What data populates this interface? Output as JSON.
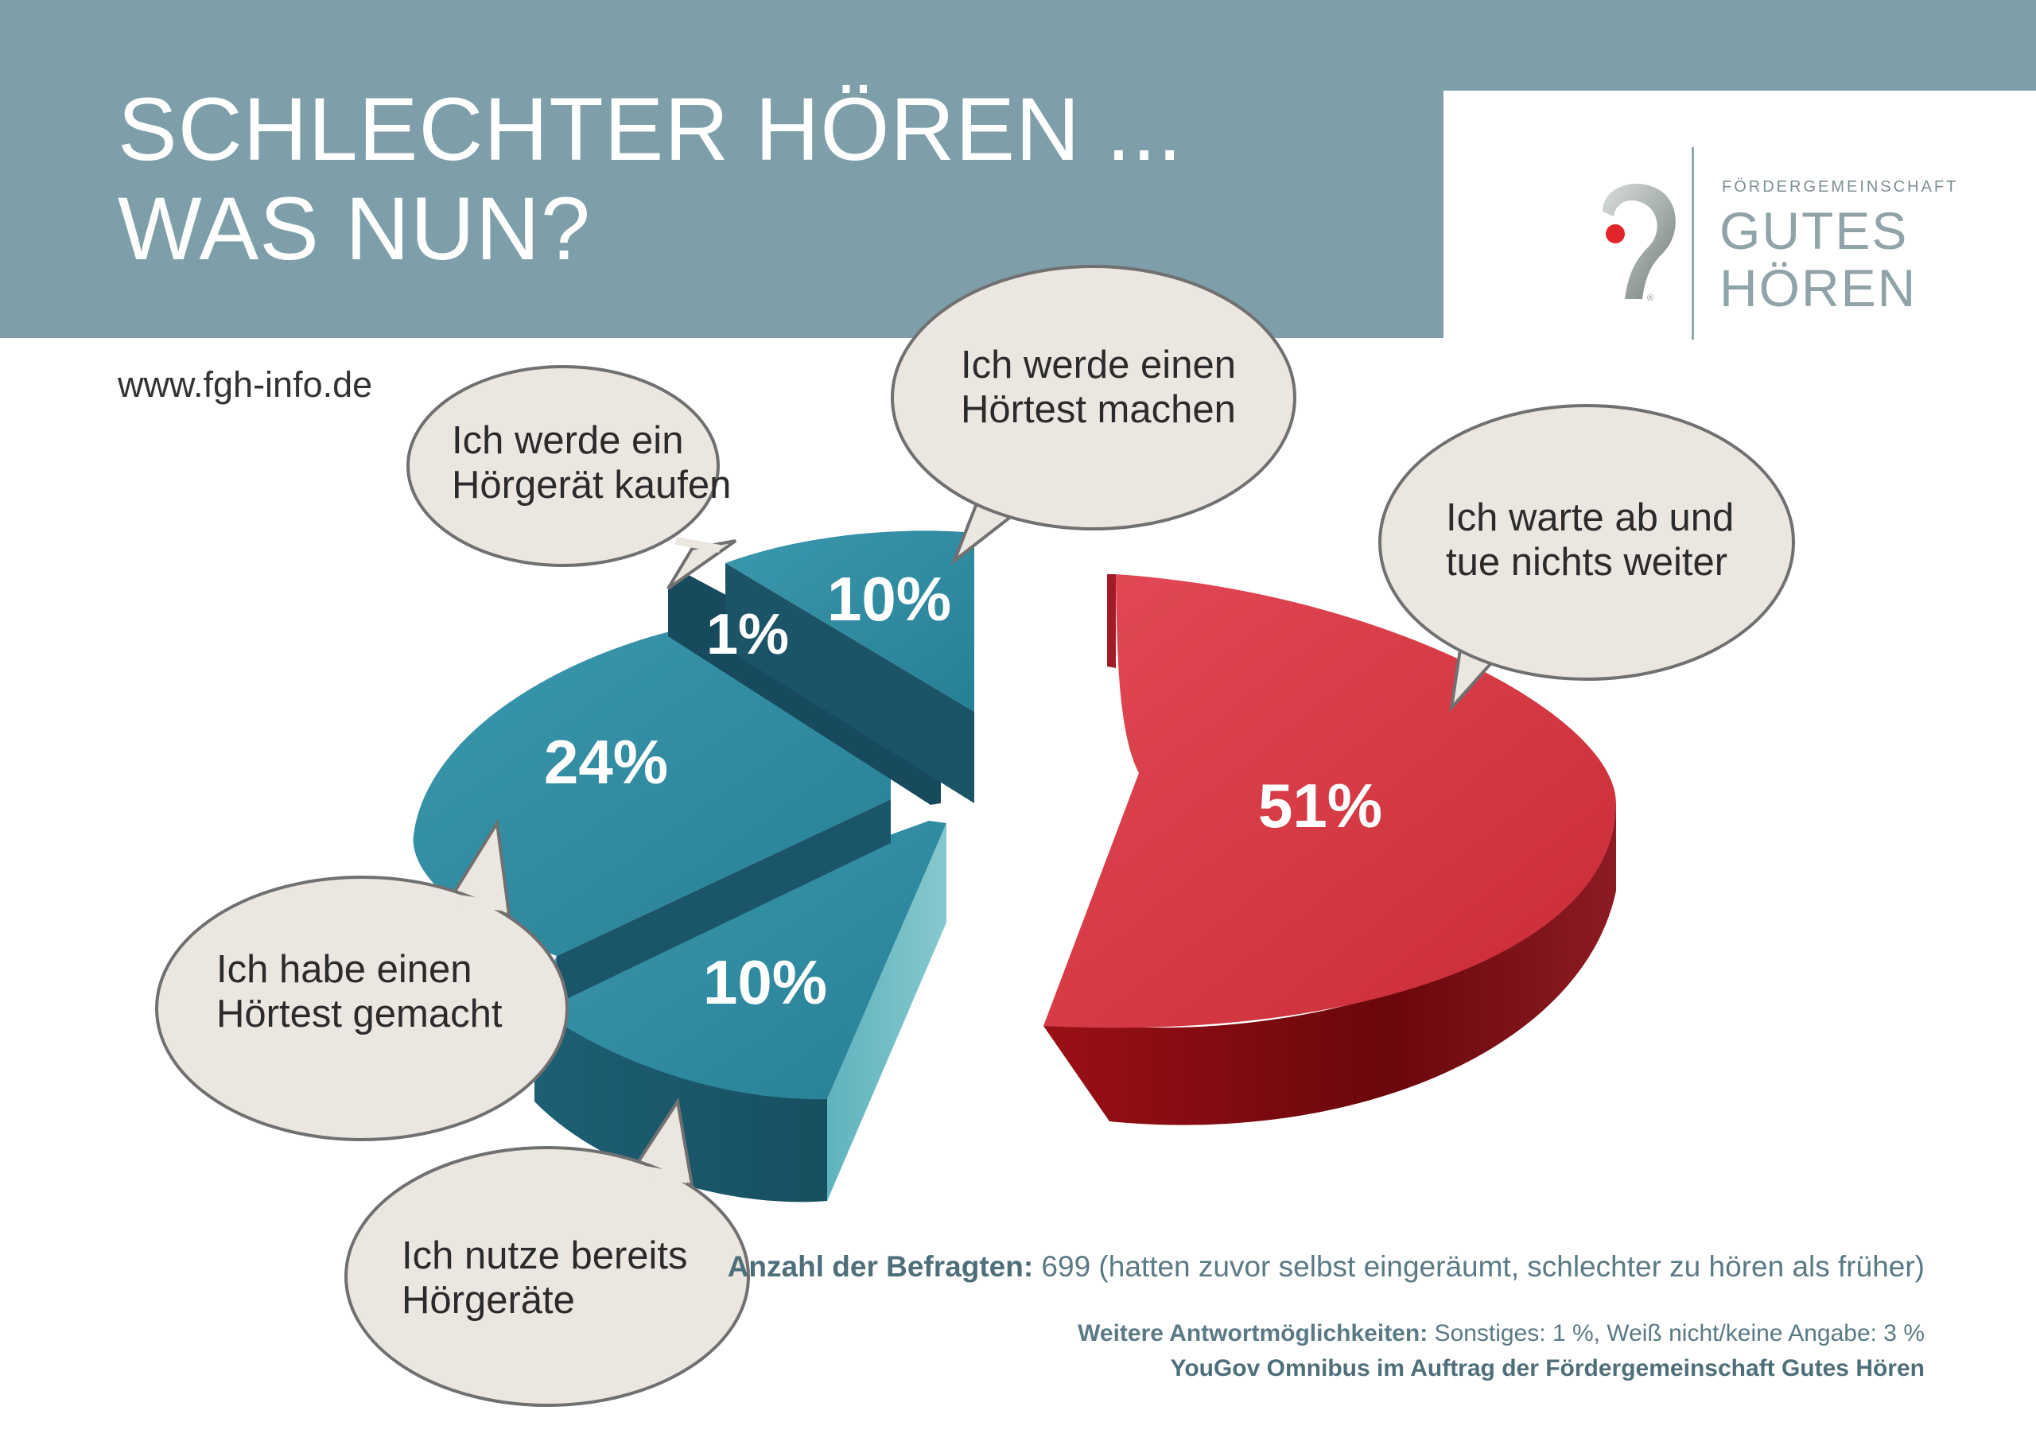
{
  "header": {
    "title_line1": "SCHLECHTER HÖREN ...",
    "title_line2": "WAS NUN?",
    "background_color": "#7e9fa9"
  },
  "logo": {
    "small_text": "FÖRDERGEMEINSCHAFT",
    "big_line1": "GUTES",
    "big_line2": "HÖREN",
    "registered_mark": "®"
  },
  "url": "www.fgh-info.de",
  "chart_data": {
    "type": "pie",
    "style": "3d-exploded",
    "slices": [
      {
        "label": "Ich warte ab und tue nichts weiter",
        "value": 51,
        "value_label": "51%",
        "color": "#d23a44"
      },
      {
        "label": "Ich nutze bereits Hörgeräte",
        "value": 10,
        "value_label": "10%",
        "color": "#2f8aa0"
      },
      {
        "label": "Ich habe einen Hörtest gemacht",
        "value": 24,
        "value_label": "24%",
        "color": "#2f8aa0"
      },
      {
        "label": "Ich werde ein Hörgerät kaufen",
        "value": 1,
        "value_label": "1%",
        "color": "#1e5d70"
      },
      {
        "label": "Ich werde einen Hörtest machen",
        "value": 10,
        "value_label": "10%",
        "color": "#2f8aa0"
      }
    ]
  },
  "bubbles": {
    "kaufen": [
      "Ich werde ein",
      "Hörgerät kaufen"
    ],
    "hoertest_machen": [
      "Ich werde einen",
      "Hörtest machen"
    ],
    "abwarten": [
      "Ich warte ab und",
      "tue nichts weiter"
    ],
    "hoertest_gemacht": [
      "Ich habe einen",
      "Hörtest gemacht"
    ],
    "hoergeraete": [
      "Ich nutze bereits",
      "Hörgeräte"
    ]
  },
  "footer": {
    "respondents_label": "Anzahl der Befragten:",
    "respondents_text": " 699 (hatten zuvor selbst eingeräumt, schlechter zu hören als früher)",
    "other_label": "Weitere Antwortmöglichkeiten:",
    "other_text": " Sonstiges: 1 %, Weiß nicht/keine Angabe: 3 %",
    "source": "YouGov Omnibus im Auftrag der Fördergemeinschaft Gutes Hören"
  }
}
